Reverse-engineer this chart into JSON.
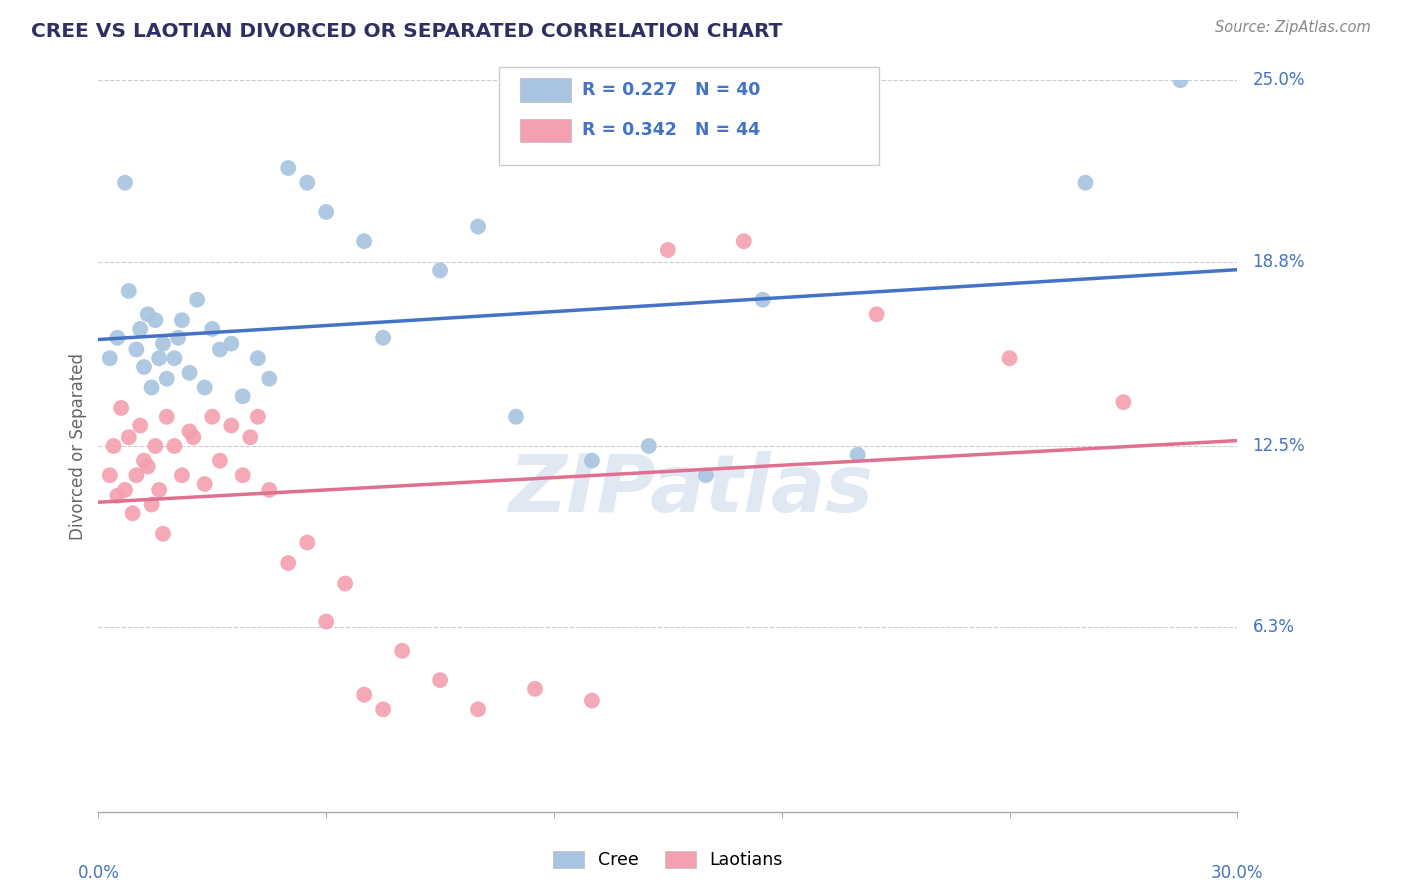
{
  "title": "CREE VS LAOTIAN DIVORCED OR SEPARATED CORRELATION CHART",
  "source": "Source: ZipAtlas.com",
  "ylabel": "Divorced or Separated",
  "xlim": [
    0.0,
    30.0
  ],
  "ylim": [
    0.0,
    25.0
  ],
  "ytick_labels": [
    "6.3%",
    "12.5%",
    "18.8%",
    "25.0%"
  ],
  "ytick_values": [
    6.3,
    12.5,
    18.8,
    25.0
  ],
  "cree_R": "0.227",
  "cree_N": "40",
  "laotian_R": "0.342",
  "laotian_N": "44",
  "cree_color": "#a8c4e0",
  "laotian_color": "#f4a0b0",
  "cree_line_color": "#4472c4",
  "laotian_line_color": "#e07090",
  "legend_text_color": "#4472c4",
  "title_color": "#2f3061",
  "axis_label_color": "#4472c4",
  "ylabel_color": "#666666",
  "watermark": "ZIPatlas",
  "cree_points": [
    [
      0.3,
      15.5
    ],
    [
      0.5,
      16.2
    ],
    [
      0.7,
      21.5
    ],
    [
      0.8,
      17.8
    ],
    [
      1.0,
      15.8
    ],
    [
      1.1,
      16.5
    ],
    [
      1.2,
      15.2
    ],
    [
      1.3,
      17.0
    ],
    [
      1.4,
      14.5
    ],
    [
      1.5,
      16.8
    ],
    [
      1.6,
      15.5
    ],
    [
      1.7,
      16.0
    ],
    [
      1.8,
      14.8
    ],
    [
      2.0,
      15.5
    ],
    [
      2.1,
      16.2
    ],
    [
      2.2,
      16.8
    ],
    [
      2.4,
      15.0
    ],
    [
      2.6,
      17.5
    ],
    [
      2.8,
      14.5
    ],
    [
      3.0,
      16.5
    ],
    [
      3.2,
      15.8
    ],
    [
      3.5,
      16.0
    ],
    [
      3.8,
      14.2
    ],
    [
      4.2,
      15.5
    ],
    [
      4.5,
      14.8
    ],
    [
      5.0,
      22.0
    ],
    [
      5.5,
      21.5
    ],
    [
      6.0,
      20.5
    ],
    [
      7.0,
      19.5
    ],
    [
      7.5,
      16.2
    ],
    [
      9.0,
      18.5
    ],
    [
      10.0,
      20.0
    ],
    [
      11.0,
      13.5
    ],
    [
      13.0,
      12.0
    ],
    [
      14.5,
      12.5
    ],
    [
      16.0,
      11.5
    ],
    [
      17.5,
      17.5
    ],
    [
      20.0,
      12.2
    ],
    [
      26.0,
      21.5
    ],
    [
      28.5,
      25.0
    ]
  ],
  "laotian_points": [
    [
      0.3,
      11.5
    ],
    [
      0.4,
      12.5
    ],
    [
      0.5,
      10.8
    ],
    [
      0.6,
      13.8
    ],
    [
      0.7,
      11.0
    ],
    [
      0.8,
      12.8
    ],
    [
      0.9,
      10.2
    ],
    [
      1.0,
      11.5
    ],
    [
      1.1,
      13.2
    ],
    [
      1.2,
      12.0
    ],
    [
      1.3,
      11.8
    ],
    [
      1.4,
      10.5
    ],
    [
      1.5,
      12.5
    ],
    [
      1.6,
      11.0
    ],
    [
      1.7,
      9.5
    ],
    [
      1.8,
      13.5
    ],
    [
      2.0,
      12.5
    ],
    [
      2.2,
      11.5
    ],
    [
      2.4,
      13.0
    ],
    [
      2.5,
      12.8
    ],
    [
      2.8,
      11.2
    ],
    [
      3.0,
      13.5
    ],
    [
      3.2,
      12.0
    ],
    [
      3.5,
      13.2
    ],
    [
      3.8,
      11.5
    ],
    [
      4.0,
      12.8
    ],
    [
      4.2,
      13.5
    ],
    [
      4.5,
      11.0
    ],
    [
      5.0,
      8.5
    ],
    [
      5.5,
      9.2
    ],
    [
      6.0,
      6.5
    ],
    [
      6.5,
      7.8
    ],
    [
      7.0,
      4.0
    ],
    [
      7.5,
      3.5
    ],
    [
      8.0,
      5.5
    ],
    [
      9.0,
      4.5
    ],
    [
      10.0,
      3.5
    ],
    [
      11.5,
      4.2
    ],
    [
      13.0,
      3.8
    ],
    [
      15.0,
      19.2
    ],
    [
      17.0,
      19.5
    ],
    [
      20.5,
      17.0
    ],
    [
      24.0,
      15.5
    ],
    [
      27.0,
      14.0
    ]
  ]
}
